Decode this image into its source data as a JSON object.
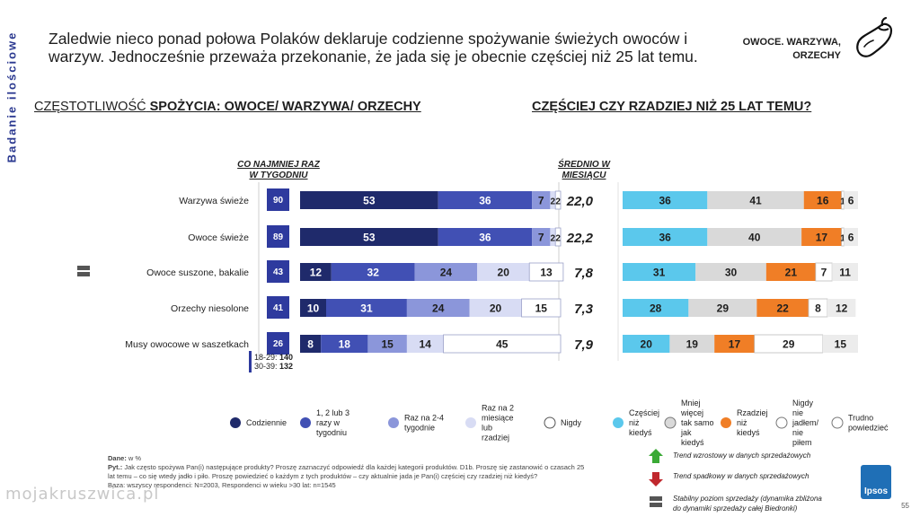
{
  "side_label": "Badanie ilościowe",
  "title": "Zaledwie nieco ponad połowa Polaków deklaruje codzienne spożywanie świeżych owoców i warzyw. Jednocześnie przeważa przekonanie, że jada się je obecnie częściej niż 25 lat temu.",
  "topic": "OWOCE. WARZYWA, ORZECHY",
  "topic_icon": "eggplant-icon",
  "left_heading_pre": "CZĘSTOTLIWOŚĆ",
  "left_heading_main": " SPOŻYCIA: OWOCE/ WARZYWA/ ORZECHY",
  "right_heading": "CZĘŚCIEJ CZY RZADZIEJ NIŻ 25 LAT TEMU?",
  "weekly_header": "CO NAJMNIEJ RAZ W TYGODNIU",
  "avg_header": "ŚREDNIO W MIESIĄCU",
  "weekly_note_lines": [
    "18-29: 140",
    "30-39: 132"
  ],
  "colors": {
    "daily": "#1f2a6b",
    "weekly_1_3": "#4150b4",
    "monthly_2_4": "#8b96da",
    "rarely": "#d8dcf4",
    "never": "#ffffff",
    "more_often": "#5bc8ec",
    "same": "#d9d9d9",
    "less_often": "#f07e26",
    "not_eating": "#ffffff",
    "hard_to_say": "#ececec",
    "weekly_box": "#2e3a9e",
    "trend_up": "#3aaa35",
    "trend_down": "#c0282d",
    "stable": "#555555"
  },
  "chart_data": [
    {
      "type": "bar",
      "stacked": true,
      "orientation": "horizontal",
      "title": "CZĘSTOTLIWOŚĆ SPOŻYCIA: OWOCE/ WARZYWA/ ORZECHY",
      "categories": [
        "Warzywa świeże",
        "Owoce świeże",
        "Owoce suszone, bakalie",
        "Orzechy niesolone",
        "Musy owocowe w saszetkach"
      ],
      "series": [
        {
          "name": "Codziennie",
          "values": [
            53,
            53,
            12,
            10,
            8
          ]
        },
        {
          "name": "1, 2 lub 3 razy w tygodniu",
          "values": [
            36,
            36,
            32,
            31,
            18
          ]
        },
        {
          "name": "Raz na 2-4 tygodnie",
          "values": [
            7,
            7,
            24,
            24,
            15
          ]
        },
        {
          "name": "Raz na 2 miesiące lub rzadziej",
          "values": [
            2,
            2,
            20,
            20,
            14
          ]
        },
        {
          "name": "Nigdy",
          "values": [
            2,
            2,
            13,
            15,
            45
          ]
        }
      ],
      "weekly_totals": [
        90,
        89,
        43,
        41,
        26
      ],
      "monthly_avg": [
        "22,0",
        "22,2",
        "7,8",
        "7,3",
        "7,9"
      ],
      "trend_markers": [
        "",
        "",
        "stable",
        "",
        ""
      ],
      "legend": "bottom"
    },
    {
      "type": "bar",
      "stacked": true,
      "orientation": "horizontal",
      "title": "CZĘŚCIEJ CZY RZADZIEJ NIŻ 25 LAT TEMU?",
      "categories": [
        "Warzywa świeże",
        "Owoce świeże",
        "Owoce suszone, bakalie",
        "Orzechy niesolone",
        "Musy owocowe w saszetkach"
      ],
      "series": [
        {
          "name": "Częściej niż kiedyś",
          "values": [
            36,
            36,
            31,
            28,
            20
          ]
        },
        {
          "name": "Mniej więcej tak samo jak kiedyś",
          "values": [
            41,
            40,
            30,
            29,
            19
          ]
        },
        {
          "name": "Rzadziej niż kiedyś",
          "values": [
            16,
            17,
            21,
            22,
            17
          ]
        },
        {
          "name": "Nigdy nie jadłem/ nie piłem",
          "values": [
            1,
            1,
            7,
            8,
            29
          ]
        },
        {
          "name": "Trudno powiedzieć",
          "values": [
            6,
            6,
            11,
            12,
            15
          ]
        }
      ],
      "legend": "bottom"
    }
  ],
  "legend_left": [
    {
      "label": "Codziennie",
      "color": "#1f2a6b"
    },
    {
      "label": "1, 2 lub 3 razy w tygodniu",
      "color": "#4150b4"
    },
    {
      "label": "Raz na 2-4 tygodnie",
      "color": "#8b96da"
    },
    {
      "label": "Raz na 2 miesiące lub rzadziej",
      "color": "#d8dcf4"
    },
    {
      "label": "Nigdy",
      "color": "#ffffff"
    }
  ],
  "legend_right": [
    {
      "label": "Częściej niż kiedyś",
      "color": "#5bc8ec"
    },
    {
      "label": "Mniej więcej tak samo jak kiedyś",
      "color": "#d9d9d9"
    },
    {
      "label": "Rzadziej niż kiedyś",
      "color": "#f07e26"
    },
    {
      "label": "Nigdy nie jadłem/ nie piłem",
      "color": "#ffffff"
    },
    {
      "label": "Trudno powiedzieć",
      "color": "#ffffff"
    }
  ],
  "trend_legend": [
    {
      "icon": "trend-up-arrow-icon",
      "label": "Trend wzrostowy w danych sprzedażowych"
    },
    {
      "icon": "trend-down-arrow-icon",
      "label": "Trend spadkowy w danych sprzedażowych"
    },
    {
      "icon": "stable-trend-icon",
      "label": "Stabilny poziom sprzedaży (dynamika zbliżona do dynamiki sprzedaży całej Biedronki)"
    }
  ],
  "notes": {
    "dane_label": "Dane:",
    "dane": " w %",
    "pyt_label": "Pyt.:",
    "pyt": " Jak często spożywa Pan(i) następujące produkty? Proszę zaznaczyć odpowiedź dla każdej kategorii produktów. D1b. Proszę się zastanowić o czasach 25 lat temu – co się wtedy jadło i piło. Proszę powiedzieć o każdym z tych produktów – czy aktualnie jada je Pan(i) częściej czy rzadziej niż kiedyś?",
    "base": "Baza: wszyscy respondenci: N=2003, Respondenci w wieku >30 lat: n=1545"
  },
  "brand": "Ipsos",
  "page_number": "55",
  "watermark": "mojakruszwica.pl"
}
